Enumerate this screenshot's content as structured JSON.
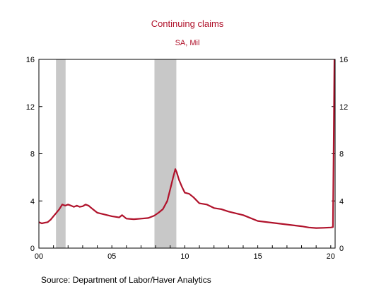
{
  "chart_data": {
    "type": "line",
    "title": "Continuing claims",
    "subtitle": "SA, Mil",
    "source": "Source:  Department of Labor/Haver Analytics",
    "xlabel": "",
    "ylabel": "",
    "xlim": [
      2000.0,
      2020.3
    ],
    "ylim": [
      0,
      16
    ],
    "yticks": [
      0,
      4,
      8,
      12,
      16
    ],
    "ytick_labels": [
      "0",
      "4",
      "8",
      "12",
      "16"
    ],
    "xticks": [
      2000,
      2005,
      2010,
      2015,
      2020
    ],
    "xtick_labels": [
      "00",
      "05",
      "10",
      "15",
      "20"
    ],
    "grid": false,
    "legend": "none",
    "line_color": "#b0122b",
    "recession_color": "#c8c8c8",
    "recessions": [
      [
        2001.17,
        2001.83
      ],
      [
        2007.92,
        2009.42
      ]
    ],
    "series": [
      {
        "x": [
          2000.0,
          2000.2,
          2000.4,
          2000.6,
          2000.8,
          2001.0,
          2001.2,
          2001.4,
          2001.6,
          2001.8,
          2002.0,
          2002.2,
          2002.4,
          2002.6,
          2002.8,
          2003.0,
          2003.2,
          2003.4,
          2003.6,
          2003.8,
          2004.0,
          2004.5,
          2005.0,
          2005.5,
          2005.7,
          2006.0,
          2006.5,
          2007.0,
          2007.5,
          2007.9,
          2008.2,
          2008.5,
          2008.8,
          2009.0,
          2009.2,
          2009.35,
          2009.45,
          2009.6,
          2009.8,
          2010.0,
          2010.3,
          2010.6,
          2011.0,
          2011.5,
          2012.0,
          2012.5,
          2013.0,
          2013.5,
          2014.0,
          2015.0,
          2016.0,
          2017.0,
          2018.0,
          2018.5,
          2019.0,
          2019.5,
          2020.0,
          2020.15,
          2020.2,
          2020.25
        ],
        "y": [
          2.2,
          2.1,
          2.15,
          2.2,
          2.4,
          2.7,
          3.0,
          3.3,
          3.7,
          3.6,
          3.7,
          3.6,
          3.5,
          3.6,
          3.5,
          3.55,
          3.7,
          3.6,
          3.4,
          3.2,
          3.0,
          2.85,
          2.7,
          2.6,
          2.8,
          2.5,
          2.45,
          2.5,
          2.55,
          2.75,
          3.0,
          3.3,
          4.0,
          5.0,
          6.0,
          6.7,
          6.4,
          5.8,
          5.2,
          4.7,
          4.6,
          4.3,
          3.8,
          3.7,
          3.4,
          3.3,
          3.1,
          2.95,
          2.8,
          2.3,
          2.15,
          2.0,
          1.85,
          1.75,
          1.7,
          1.72,
          1.75,
          1.78,
          8.0,
          16.0
        ]
      }
    ]
  }
}
